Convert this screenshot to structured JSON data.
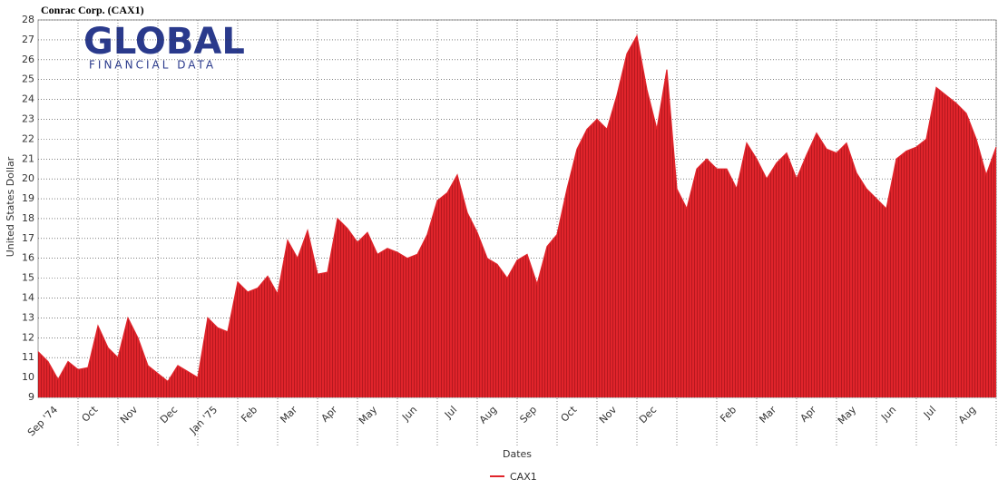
{
  "logo": {
    "title": "GLOBAL",
    "subtitle": "FINANCIAL DATA"
  },
  "chart_data": {
    "type": "area",
    "title": "Conrac Corp. (CAX1)",
    "x_label": "Dates",
    "y_label": "United States Dollar",
    "categories": [
      "Sep '74",
      null,
      null,
      null,
      "Oct",
      null,
      null,
      null,
      "Nov",
      null,
      null,
      null,
      "Dec",
      null,
      null,
      null,
      "Jan '75",
      null,
      null,
      null,
      "Feb",
      null,
      null,
      null,
      "Mar",
      null,
      null,
      null,
      "Apr",
      null,
      null,
      null,
      "May",
      null,
      null,
      null,
      "Jun",
      null,
      null,
      null,
      "Jul",
      null,
      null,
      null,
      "Aug",
      null,
      null,
      null,
      "Sep",
      null,
      null,
      null,
      "Oct",
      null,
      null,
      null,
      "Nov",
      null,
      null,
      null,
      "Dec",
      null,
      null,
      null,
      null,
      null,
      null,
      null,
      "Feb",
      null,
      null,
      null,
      "Mar",
      null,
      null,
      null,
      "Apr",
      null,
      null,
      null,
      "May",
      null,
      null,
      null,
      "Jun",
      null,
      null,
      null,
      "Jul",
      null,
      null,
      null,
      "Aug",
      null,
      null,
      null,
      null
    ],
    "series": [
      {
        "name": "CAX1",
        "color": "#e0242b",
        "values": [
          11.3,
          10.8,
          9.9,
          10.8,
          10.4,
          10.5,
          12.6,
          11.5,
          11.0,
          13.0,
          12.0,
          10.6,
          10.2,
          9.8,
          10.6,
          10.3,
          10.0,
          13.0,
          12.5,
          12.3,
          14.8,
          14.3,
          14.5,
          15.1,
          14.2,
          16.9,
          16.0,
          17.4,
          15.2,
          15.3,
          18.0,
          17.5,
          16.8,
          17.3,
          16.2,
          16.5,
          16.3,
          16.0,
          16.2,
          17.2,
          18.9,
          19.3,
          20.2,
          18.3,
          17.3,
          16.0,
          15.7,
          15.0,
          15.9,
          16.2,
          14.7,
          16.6,
          17.2,
          19.5,
          21.5,
          22.5,
          23.0,
          22.5,
          24.2,
          26.3,
          27.2,
          24.5,
          22.5,
          25.5,
          19.5,
          18.5,
          20.5,
          21.0,
          20.5,
          20.5,
          19.5,
          21.8,
          21.0,
          20.0,
          20.8,
          21.3,
          20.0,
          21.2,
          22.3,
          21.5,
          21.3,
          21.8,
          20.3,
          19.5,
          19.0,
          18.5,
          21.0,
          21.4,
          21.6,
          22.0,
          24.6,
          24.2,
          23.8,
          23.3,
          22.0,
          20.2,
          21.6
        ]
      }
    ],
    "ylim": [
      9,
      28
    ],
    "yticks": [
      9,
      10,
      11,
      12,
      13,
      14,
      15,
      16,
      17,
      18,
      19,
      20,
      21,
      22,
      23,
      24,
      25,
      26,
      27,
      28
    ],
    "grid": true
  }
}
